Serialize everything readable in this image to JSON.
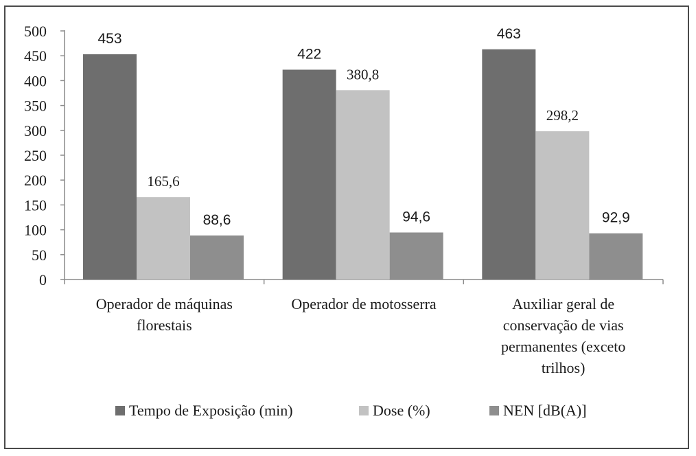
{
  "chart_data": {
    "type": "bar",
    "categories": [
      [
        "Operador de máquinas",
        "florestais"
      ],
      [
        "Operador de motosserra"
      ],
      [
        "Auxiliar geral de",
        "conservação de vias",
        "permanentes (exceto",
        "trilhos)"
      ]
    ],
    "series": [
      {
        "name": "Tempo de Exposição (min)",
        "color": "#6e6e6e",
        "values": [
          453,
          422,
          463
        ],
        "labels": [
          "453",
          "422",
          "463"
        ]
      },
      {
        "name": "Dose (%)",
        "color": "#c2c2c2",
        "values": [
          165.6,
          380.8,
          298.2
        ],
        "labels": [
          "165,6",
          "380,8",
          "298,2"
        ]
      },
      {
        "name": "NEN [dB(A)]",
        "color": "#8e8e8e",
        "values": [
          88.6,
          94.6,
          92.9
        ],
        "labels": [
          "88,6",
          "94,6",
          "92,9"
        ]
      }
    ],
    "ylim": [
      0,
      500
    ],
    "yticks": [
      0,
      50,
      100,
      150,
      200,
      250,
      300,
      350,
      400,
      450,
      500
    ],
    "legend_position": "bottom",
    "grid": false
  }
}
